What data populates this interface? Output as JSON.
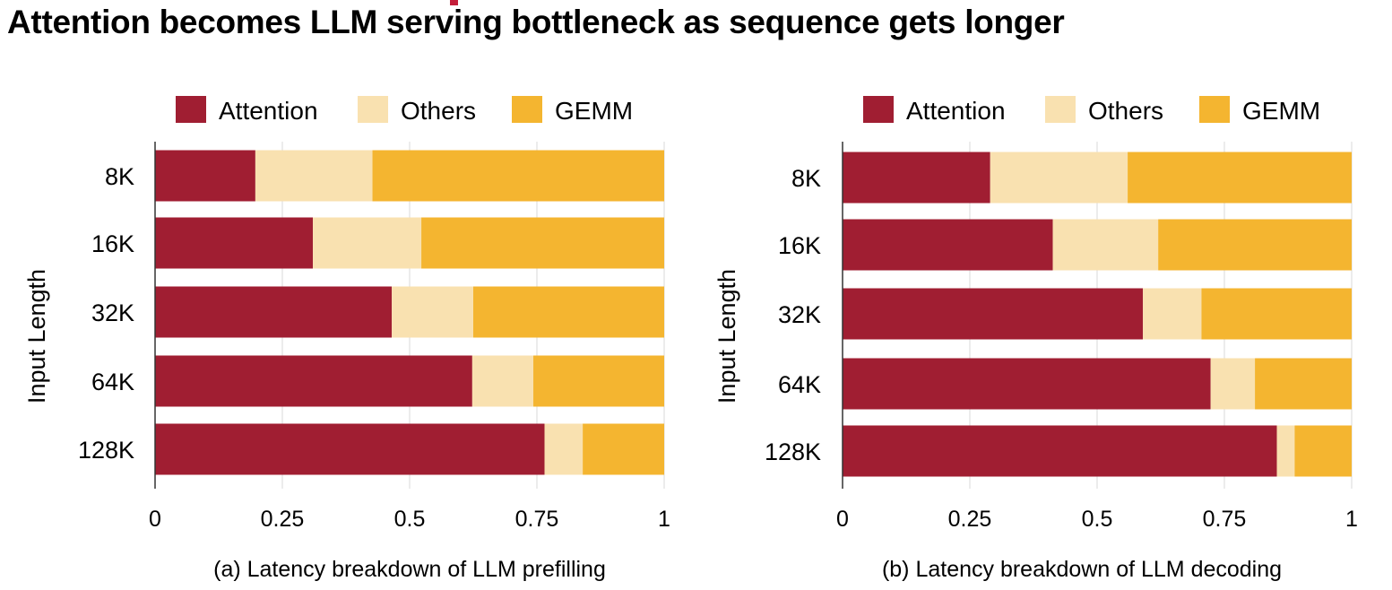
{
  "title": "Attention becomes LLM serving bottleneck as sequence gets longer",
  "colors": {
    "attention": "#a01e32",
    "others": "#f9e1b0",
    "gemm": "#f4b530",
    "grid": "#d9d9d9",
    "axis": "#333333",
    "accent": "#c41e3a"
  },
  "chart_data": [
    {
      "type": "bar",
      "orientation": "horizontal",
      "stacked": true,
      "caption": "(a) Latency breakdown of LLM prefilling",
      "ylabel": "Input Length",
      "xlabel": "",
      "xlim": [
        0,
        1
      ],
      "xticks": [
        "0",
        "0.25",
        "0.5",
        "0.75",
        "1"
      ],
      "grid": true,
      "legend_position": "top",
      "categories": [
        "8K",
        "16K",
        "32K",
        "64K",
        "128K"
      ],
      "series": [
        {
          "name": "Attention",
          "values": [
            0.197,
            0.31,
            0.465,
            0.623,
            0.765
          ]
        },
        {
          "name": "Others",
          "values": [
            0.23,
            0.213,
            0.16,
            0.12,
            0.075
          ]
        },
        {
          "name": "GEMM",
          "values": [
            0.573,
            0.477,
            0.375,
            0.257,
            0.16
          ]
        }
      ]
    },
    {
      "type": "bar",
      "orientation": "horizontal",
      "stacked": true,
      "caption": "(b) Latency breakdown of LLM decoding",
      "ylabel": "Input Length",
      "xlabel": "",
      "xlim": [
        0,
        1
      ],
      "xticks": [
        "0",
        "0.25",
        "0.5",
        "0.75",
        "1"
      ],
      "grid": true,
      "legend_position": "top",
      "categories": [
        "8K",
        "16K",
        "32K",
        "64K",
        "128K"
      ],
      "series": [
        {
          "name": "Attention",
          "values": [
            0.29,
            0.413,
            0.59,
            0.723,
            0.853
          ]
        },
        {
          "name": "Others",
          "values": [
            0.27,
            0.207,
            0.115,
            0.087,
            0.035
          ]
        },
        {
          "name": "GEMM",
          "values": [
            0.44,
            0.38,
            0.295,
            0.19,
            0.112
          ]
        }
      ]
    }
  ]
}
